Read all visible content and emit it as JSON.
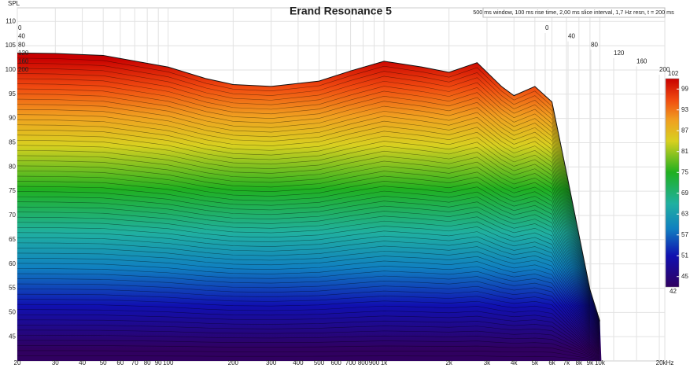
{
  "chart_data": {
    "type": "waterfall",
    "title": "Erand Resonance 5",
    "annotation": "500 ms window, 100 ms rise time, 2,00 ms slice interval, 1,7 Hz resn, t = 200 ms",
    "ylabel": "SPL",
    "log_x": true,
    "grid": true,
    "x": [
      20,
      30,
      50,
      100,
      150,
      200,
      300,
      500,
      700,
      1000,
      1500,
      2000,
      2700,
      3500,
      4000,
      5000,
      6000,
      7000,
      8000,
      9000,
      10000
    ],
    "values": [
      103.5,
      103.4,
      103,
      100.6,
      98.2,
      97,
      96.6,
      97.7,
      99.8,
      101.8,
      100.6,
      99.5,
      101.5,
      96.6,
      94.7,
      96.6,
      93.4,
      78.9,
      66,
      54.7,
      48.2
    ],
    "xlim": [
      20,
      20000
    ],
    "xticks": [
      20,
      30,
      40,
      50,
      60,
      70,
      80,
      90,
      100,
      200,
      300,
      400,
      500,
      600,
      700,
      800,
      900,
      {
        "value": 1000,
        "label": "1k"
      },
      {
        "value": 2000,
        "label": "2k"
      },
      {
        "value": 3000,
        "label": "3k"
      },
      {
        "value": 4000,
        "label": "4k"
      },
      {
        "value": 5000,
        "label": "5k"
      },
      {
        "value": 6000,
        "label": "6k"
      },
      {
        "value": 7000,
        "label": "7k"
      },
      {
        "value": 8000,
        "label": "8k"
      },
      {
        "value": 9000,
        "label": "9k"
      },
      {
        "value": 10000,
        "label": "10k"
      },
      {
        "value": 20000,
        "label": "20kHz"
      }
    ],
    "ylim": [
      40,
      112.8
    ],
    "yticks": [
      45,
      50,
      55,
      60,
      65,
      70,
      75,
      80,
      85,
      90,
      95,
      100,
      105,
      110
    ],
    "zticks": [
      0,
      40,
      80,
      120,
      160,
      200
    ],
    "colorbar": {
      "range": [
        42,
        102
      ],
      "ticks": [
        45,
        51,
        57,
        63,
        69,
        75,
        81,
        87,
        93,
        99
      ]
    }
  }
}
